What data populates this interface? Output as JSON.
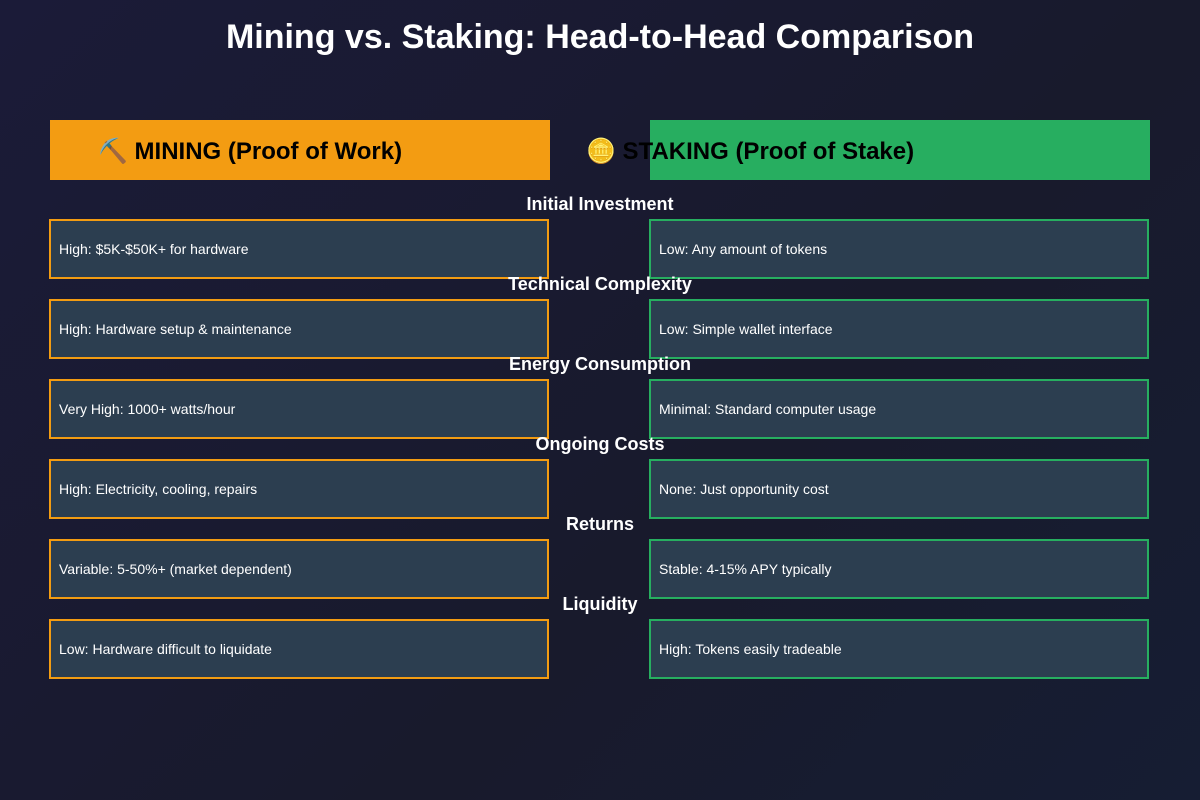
{
  "title": "Mining vs. Staking: Head-to-Head Comparison",
  "columns": {
    "mining": "⛏️ MINING (Proof of Work)",
    "staking": "🪙 STAKING (Proof of Stake)"
  },
  "rows": [
    {
      "label": "Initial Investment",
      "mining": "High: $5K-$50K+ for hardware",
      "staking": "Low: Any amount of tokens"
    },
    {
      "label": "Technical Complexity",
      "mining": "High: Hardware setup & maintenance",
      "staking": "Low: Simple wallet interface"
    },
    {
      "label": "Energy Consumption",
      "mining": "Very High: 1000+ watts/hour",
      "staking": "Minimal: Standard computer usage"
    },
    {
      "label": "Ongoing Costs",
      "mining": "High: Electricity, cooling, repairs",
      "staking": "None: Just opportunity cost"
    },
    {
      "label": "Returns",
      "mining": "Variable: 5-50%+ (market dependent)",
      "staking": "Stable: 4-15% APY typically"
    },
    {
      "label": "Liquidity",
      "mining": "Low: Hardware difficult to liquidate",
      "staking": "High: Tokens easily tradeable"
    }
  ]
}
